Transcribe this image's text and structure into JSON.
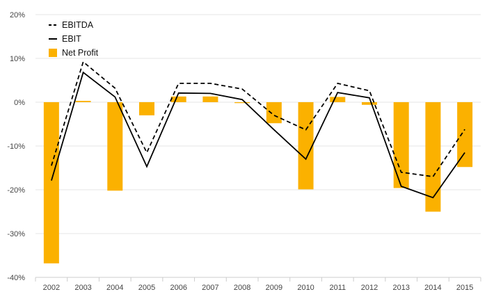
{
  "chart_data": {
    "type": "bar",
    "title": "",
    "xlabel": "",
    "ylabel": "",
    "categories": [
      "2002",
      "2003",
      "2004",
      "2005",
      "2006",
      "2007",
      "2008",
      "2009",
      "2010",
      "2011",
      "2012",
      "2013",
      "2014",
      "2015"
    ],
    "ylim": [
      -40,
      20
    ],
    "yticks": [
      20,
      10,
      0,
      -10,
      -20,
      -30,
      -40
    ],
    "ytick_labels": [
      "20%",
      "10%",
      "0%",
      "-10%",
      "-20%",
      "-30%",
      "-40%"
    ],
    "grid": true,
    "legend_position": "top-left",
    "series": [
      {
        "name": "EBITDA",
        "type": "line",
        "style": "dashed",
        "color": "#000000",
        "values": [
          -14.5,
          9.2,
          3.2,
          -11.5,
          4.3,
          4.3,
          3.0,
          -3.0,
          -6.3,
          4.3,
          2.6,
          -16.0,
          -17.0,
          -6.2
        ]
      },
      {
        "name": "EBIT",
        "type": "line",
        "style": "solid",
        "color": "#000000",
        "values": [
          -17.9,
          6.8,
          1.2,
          -14.7,
          2.1,
          2.0,
          0.6,
          -6.3,
          -13.0,
          2.2,
          1.0,
          -19.2,
          -21.8,
          -11.5
        ]
      },
      {
        "name": "Net Profit",
        "type": "bar",
        "color": "#FBB100",
        "values": [
          -36.8,
          0.3,
          -20.2,
          -3.0,
          1.3,
          1.3,
          -0.2,
          -4.8,
          -19.9,
          1.2,
          -0.6,
          -19.6,
          -25.0,
          -14.8
        ]
      }
    ]
  }
}
